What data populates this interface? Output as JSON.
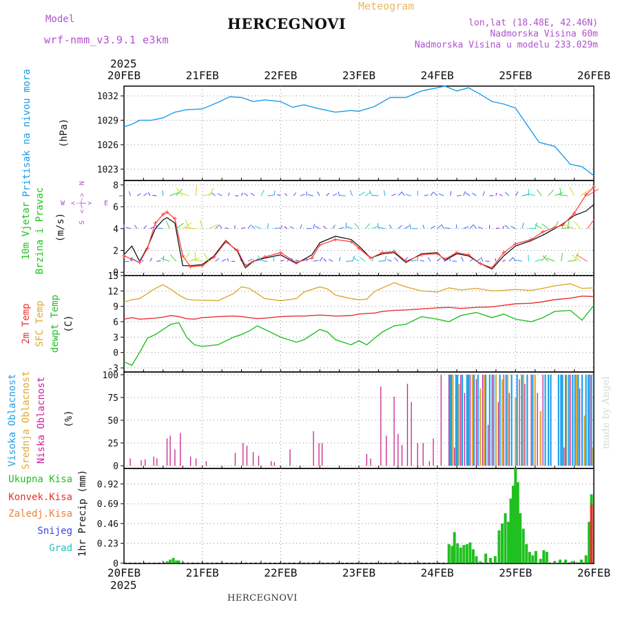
{
  "header": {
    "model_label": "Model",
    "model_name": "wrf-nmm_v3.9.1 e3km",
    "meteogram_label": "Meteogram",
    "station": "HERCEGNOVI",
    "lonlat": "lon,lat (18.48E, 42.46N)",
    "elevation": "Nadmorska Visina 60m",
    "model_elevation": "Nadmorska Visina u modelu 233.029m",
    "footer_station": "HERCEGNOVI",
    "credit": "made by Angel",
    "colors": {
      "title_purple": "#b050d0",
      "meteogram_label": "#e8b860"
    }
  },
  "time_axis": {
    "year": "2025",
    "ticks": [
      "20FEB",
      "21FEB",
      "22FEB",
      "23FEB",
      "24FEB",
      "25FEB",
      "26FEB"
    ]
  },
  "chart_data": [
    {
      "id": "pressure",
      "type": "line",
      "title_lines": [
        "Pritisak na nivou mora"
      ],
      "ylabel": "(hPa)",
      "yticks": [
        1023,
        1026,
        1029,
        1032
      ],
      "ylim": [
        1021.6,
        1033.2
      ],
      "x": [
        0,
        0.1,
        0.2,
        0.35,
        0.5,
        0.65,
        0.8,
        1.0,
        1.2,
        1.35,
        1.5,
        1.65,
        1.8,
        2.0,
        2.15,
        2.3,
        2.5,
        2.7,
        2.9,
        3.0,
        3.2,
        3.4,
        3.6,
        3.8,
        4.0,
        4.1,
        4.25,
        4.4,
        4.55,
        4.7,
        4.85,
        5.0,
        5.15,
        5.3,
        5.5,
        5.7,
        5.85,
        6.0
      ],
      "series": [
        {
          "name": "Pritisak na nivou mora",
          "color": "#1a9be8",
          "values": [
            1028.2,
            1028.5,
            1029.0,
            1029.0,
            1029.3,
            1030.0,
            1030.3,
            1030.4,
            1031.2,
            1031.9,
            1031.8,
            1031.3,
            1031.5,
            1031.3,
            1030.6,
            1030.9,
            1030.4,
            1030.0,
            1030.2,
            1030.1,
            1030.7,
            1031.8,
            1031.8,
            1032.6,
            1033.0,
            1033.2,
            1032.6,
            1033.0,
            1032.2,
            1031.3,
            1031.0,
            1030.5,
            1028.4,
            1026.3,
            1025.8,
            1023.6,
            1023.3,
            1022.2
          ]
        }
      ]
    },
    {
      "id": "wind",
      "type": "line",
      "title_lines": [
        "10m Vjetar",
        "Brzina i Pravac"
      ],
      "ylabel": "(m/s)",
      "yticks": [
        0,
        2,
        4,
        6,
        8
      ],
      "ylim": [
        -0.3,
        8.4
      ],
      "compass": {
        "n": "N",
        "e": "E",
        "w": "W",
        "s": "S"
      },
      "x": [
        0,
        0.1,
        0.2,
        0.3,
        0.4,
        0.5,
        0.55,
        0.65,
        0.75,
        0.85,
        1.0,
        1.15,
        1.3,
        1.45,
        1.55,
        1.65,
        1.8,
        2.0,
        2.2,
        2.4,
        2.5,
        2.7,
        2.9,
        3.0,
        3.15,
        3.3,
        3.45,
        3.6,
        3.8,
        4.0,
        4.1,
        4.25,
        4.4,
        4.55,
        4.7,
        4.85,
        5.0,
        5.2,
        5.35,
        5.5,
        5.6,
        5.75,
        5.9,
        6.0
      ],
      "series": [
        {
          "name": "Brzina",
          "color": "#ff4040",
          "values": [
            1.5,
            1.2,
            0.9,
            2.2,
            4.5,
            5.3,
            5.5,
            4.9,
            1.5,
            0.5,
            0.6,
            1.4,
            2.8,
            2.0,
            0.6,
            1.0,
            1.4,
            1.8,
            0.9,
            1.3,
            2.5,
            3.0,
            2.8,
            2.2,
            1.3,
            1.8,
            1.9,
            1.0,
            1.6,
            1.7,
            1.2,
            1.8,
            1.6,
            0.8,
            0.4,
            1.8,
            2.6,
            3.0,
            3.7,
            4.1,
            4.3,
            5.4,
            7.1,
            7.8
          ]
        },
        {
          "name": "Udari",
          "color": "#000000",
          "values": [
            1.6,
            2.4,
            1.0,
            2.3,
            4.0,
            4.8,
            5.0,
            4.5,
            0.6,
            0.6,
            0.7,
            1.5,
            2.9,
            1.9,
            0.4,
            1.0,
            1.3,
            1.6,
            0.8,
            1.6,
            2.7,
            3.3,
            3.0,
            2.4,
            1.3,
            1.7,
            1.8,
            0.9,
            1.7,
            1.8,
            1.1,
            1.7,
            1.5,
            0.8,
            0.3,
            1.5,
            2.4,
            2.9,
            3.4,
            4.0,
            4.4,
            5.2,
            5.6,
            6.2
          ]
        }
      ]
    },
    {
      "id": "temperature",
      "type": "line",
      "title_lines": [
        "2m Temp",
        "SFC Temp",
        "dewpt Temp"
      ],
      "title_colors": [
        "#e83030",
        "#e0a830",
        "#20c020"
      ],
      "ylabel": "(C)",
      "yticks": [
        -3,
        0,
        3,
        6,
        9,
        12,
        15
      ],
      "ylim": [
        -3.8,
        15
      ],
      "x": [
        0,
        0.1,
        0.2,
        0.3,
        0.4,
        0.5,
        0.6,
        0.7,
        0.8,
        0.9,
        1.0,
        1.2,
        1.4,
        1.5,
        1.6,
        1.7,
        1.8,
        2.0,
        2.2,
        2.3,
        2.5,
        2.6,
        2.7,
        2.9,
        3.0,
        3.1,
        3.2,
        3.3,
        3.45,
        3.6,
        3.8,
        4.0,
        4.15,
        4.3,
        4.5,
        4.7,
        4.85,
        5.0,
        5.2,
        5.35,
        5.5,
        5.7,
        5.85,
        6.0
      ],
      "series": [
        {
          "name": "2m Temp",
          "color": "#e83030",
          "values": [
            6.5,
            6.8,
            6.5,
            6.6,
            6.7,
            6.9,
            7.2,
            7.0,
            6.6,
            6.5,
            6.8,
            7.0,
            7.1,
            7.0,
            6.8,
            6.6,
            6.7,
            7.0,
            7.1,
            7.1,
            7.3,
            7.2,
            7.1,
            7.2,
            7.5,
            7.6,
            7.7,
            8.0,
            8.2,
            8.3,
            8.5,
            8.7,
            8.8,
            8.6,
            8.8,
            8.9,
            9.2,
            9.5,
            9.6,
            9.9,
            10.3,
            10.6,
            11.0,
            10.9
          ]
        },
        {
          "name": "SFC Temp",
          "color": "#e0a830",
          "values": [
            9.8,
            10.3,
            10.5,
            11.5,
            12.5,
            13.2,
            12.3,
            11.2,
            10.4,
            10.2,
            10.2,
            10.1,
            11.5,
            12.8,
            12.5,
            11.5,
            10.5,
            10.1,
            10.5,
            11.8,
            12.8,
            12.4,
            11.2,
            10.5,
            10.3,
            10.4,
            11.9,
            12.6,
            13.6,
            12.8,
            12.0,
            11.8,
            12.6,
            12.2,
            12.5,
            12.0,
            12.1,
            12.3,
            12.1,
            12.5,
            13.0,
            13.4,
            12.5,
            12.6
          ]
        },
        {
          "name": "dewpt Temp",
          "color": "#20c020",
          "values": [
            -1.8,
            -2.5,
            0.0,
            2.8,
            3.5,
            4.5,
            5.5,
            5.8,
            3.0,
            1.5,
            1.2,
            1.5,
            3.0,
            3.5,
            4.2,
            5.2,
            4.5,
            3.0,
            2.0,
            2.5,
            4.5,
            4.0,
            2.5,
            1.5,
            2.3,
            1.5,
            2.8,
            4.0,
            5.2,
            5.5,
            7.0,
            6.5,
            6.0,
            7.2,
            7.8,
            6.8,
            7.5,
            6.5,
            6.0,
            6.8,
            8.0,
            8.2,
            6.3,
            9.2
          ]
        }
      ]
    },
    {
      "id": "clouds",
      "type": "bar",
      "title_lines": [
        "Visoka Oblacnost",
        "Srednja Oblacnost",
        "Niska Oblacnost"
      ],
      "title_colors": [
        "#20a0e8",
        "#e0a830",
        "#d020a0"
      ],
      "ylabel": "(%)",
      "yticks": [
        0,
        25,
        50,
        75,
        100
      ],
      "ylim": [
        -3,
        103
      ],
      "series": [
        {
          "name": "Niska Oblacnost",
          "color": "#c8208c",
          "x": [
            0.08,
            0.22,
            0.27,
            0.38,
            0.42,
            0.55,
            0.59,
            0.65,
            0.72,
            0.85,
            0.92,
            1.05,
            1.42,
            1.52,
            1.57,
            1.65,
            1.72,
            1.88,
            1.92,
            2.12,
            2.42,
            2.49,
            2.53,
            3.1,
            3.15,
            3.28,
            3.35,
            3.45,
            3.5,
            3.55,
            3.62,
            3.67,
            3.75,
            3.82,
            3.9,
            3.95,
            4.05,
            4.15,
            4.22,
            4.3,
            4.35,
            4.42,
            4.5,
            4.58,
            4.65,
            4.7,
            4.78,
            4.85,
            4.92,
            5.05,
            5.12,
            5.2,
            5.28,
            5.35,
            5.62,
            5.7,
            5.82,
            5.95
          ],
          "values": [
            8,
            6,
            7,
            10,
            8,
            30,
            33,
            18,
            36,
            10,
            8,
            5,
            14,
            25,
            22,
            15,
            11,
            5,
            4,
            18,
            38,
            25,
            25,
            13,
            8,
            87,
            33,
            76,
            35,
            23,
            90,
            70,
            25,
            25,
            5,
            30,
            100,
            100,
            20,
            100,
            80,
            100,
            95,
            100,
            45,
            100,
            70,
            100,
            80,
            95,
            90,
            100,
            80,
            100,
            20,
            100,
            85,
            100
          ]
        },
        {
          "name": "Srednja Oblacnost",
          "color": "#e0a830",
          "x": [
            4.2,
            4.28,
            4.45,
            4.55,
            4.6,
            4.75,
            4.83,
            4.9,
            5.0,
            5.1,
            5.25,
            5.32,
            5.65,
            5.78,
            5.88,
            5.98
          ],
          "values": [
            100,
            90,
            100,
            85,
            100,
            100,
            95,
            100,
            75,
            100,
            100,
            60,
            100,
            100,
            55,
            20
          ]
        },
        {
          "name": "Visoka Oblacnost",
          "color": "#20a0e8",
          "x": [
            4.16,
            4.18,
            4.24,
            4.26,
            4.32,
            4.38,
            4.4,
            4.47,
            4.52,
            4.62,
            4.67,
            4.72,
            4.8,
            4.88,
            4.95,
            5.02,
            5.08,
            5.15,
            5.22,
            5.38,
            5.42,
            5.45,
            5.55,
            5.58,
            5.6,
            5.64,
            5.68,
            5.73,
            5.76,
            5.8,
            5.85,
            5.9,
            5.93,
            5.97
          ],
          "values": [
            100,
            100,
            100,
            100,
            100,
            100,
            100,
            100,
            100,
            100,
            100,
            100,
            100,
            100,
            100,
            100,
            100,
            100,
            100,
            100,
            100,
            100,
            100,
            100,
            100,
            100,
            100,
            100,
            100,
            100,
            100,
            100,
            100,
            100
          ]
        }
      ]
    },
    {
      "id": "precip",
      "type": "bar",
      "title_lines": [
        "Ukupna Kisa",
        "Konvek.Kisa",
        "Zaledj.Kisa",
        "Snijeg",
        "Grad"
      ],
      "title_colors": [
        "#20c020",
        "#e83030",
        "#f08030",
        "#4040e0",
        "#20c0c0"
      ],
      "ylabel": "1hr Precip (mm)",
      "yticks": [
        0,
        0.23,
        0.46,
        0.69,
        0.92
      ],
      "ylim": [
        -0.005,
        1.1
      ],
      "series": [
        {
          "name": "Ukupna Kisa",
          "color": "#20c020",
          "x": [
            0.55,
            0.59,
            0.63,
            0.67,
            0.7,
            4.15,
            4.19,
            4.22,
            4.26,
            4.3,
            4.34,
            4.38,
            4.42,
            4.46,
            4.5,
            4.55,
            4.62,
            4.68,
            4.74,
            4.79,
            4.83,
            4.87,
            4.91,
            4.94,
            4.97,
            5.0,
            5.03,
            5.06,
            5.1,
            5.14,
            5.18,
            5.22,
            5.26,
            5.32,
            5.36,
            5.4,
            5.5,
            5.57,
            5.64,
            5.72,
            5.78,
            5.84,
            5.9,
            5.94,
            5.97
          ],
          "values": [
            0.02,
            0.04,
            0.06,
            0.03,
            0.03,
            0.22,
            0.2,
            0.36,
            0.23,
            0.18,
            0.21,
            0.22,
            0.24,
            0.16,
            0.08,
            0.02,
            0.11,
            0.06,
            0.08,
            0.38,
            0.46,
            0.58,
            0.48,
            0.75,
            0.9,
            1.1,
            0.94,
            0.58,
            0.4,
            0.22,
            0.13,
            0.09,
            0.14,
            0.05,
            0.15,
            0.13,
            0.02,
            0.04,
            0.04,
            0.02,
            0.01,
            0.04,
            0.09,
            0.48,
            0.8
          ]
        },
        {
          "name": "Konvek.Kisa",
          "color": "#e83030",
          "x": [
            5.97
          ],
          "values": [
            0.68
          ]
        }
      ]
    }
  ]
}
